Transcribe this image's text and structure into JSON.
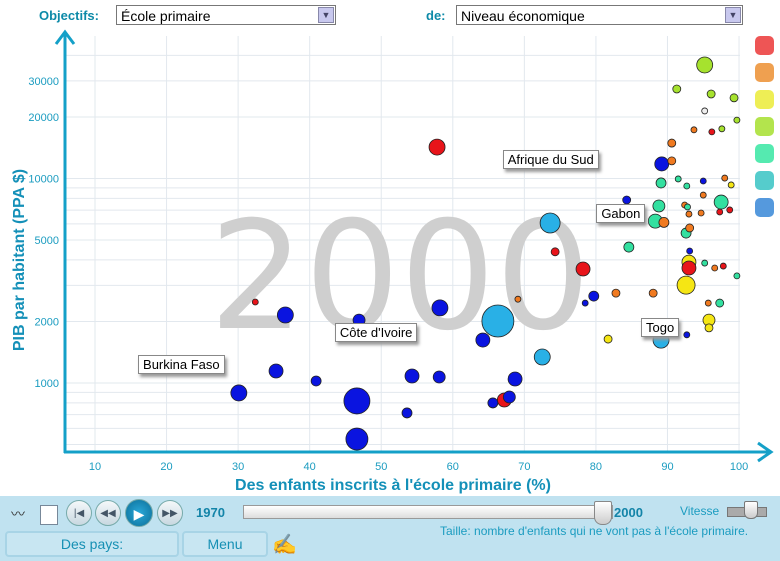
{
  "header": {
    "objectives_label": "Objectifs:",
    "objectives_value": "École primaire",
    "of_label": "de:",
    "of_value": "Niveau économique"
  },
  "chart_data": {
    "type": "scatter",
    "xlabel": "Des enfants inscrits à l'école primaire (%)",
    "ylabel": "PIB par habitant (PPA $)",
    "year": "2000",
    "xlim": [
      5.8,
      100.1
    ],
    "ylim": [
      460,
      47600
    ],
    "yscale": "log",
    "grid": true,
    "xticks": [
      10,
      20,
      30,
      40,
      50,
      60,
      70,
      80,
      90,
      100
    ],
    "yticks": [
      1000,
      2000,
      5000,
      10000,
      20000,
      30000
    ],
    "size_note": "Taille: nombre d'enfants qui ne vont pas à l'école primaire.",
    "legend_colors": [
      "#ee5555",
      "#efa050",
      "#eeee55",
      "#b3e44d",
      "#55eab0",
      "#55cccc",
      "#5599dd"
    ],
    "colors": {
      "r": "#e8141a",
      "o": "#f07a20",
      "y": "#f5e614",
      "g": "#a6e22e",
      "t": "#33e0a0",
      "c": "#29b0e6",
      "b": "#0a14e0",
      "w": "#eeeeee"
    },
    "points": [
      {
        "x": 46.6,
        "y": 817,
        "s": 13,
        "c": "b"
      },
      {
        "x": 46.6,
        "y": 532,
        "s": 11,
        "c": "b"
      },
      {
        "x": 66.3,
        "y": 2010,
        "s": 16,
        "c": "c"
      },
      {
        "x": 73.6,
        "y": 6060,
        "s": 10,
        "c": "c"
      },
      {
        "x": 72.5,
        "y": 1340,
        "s": 8,
        "c": "c"
      },
      {
        "x": 30.1,
        "y": 894,
        "s": 8,
        "c": "b"
      },
      {
        "x": 36.6,
        "y": 2150,
        "s": 8,
        "c": "b"
      },
      {
        "x": 35.3,
        "y": 1145,
        "s": 7,
        "c": "b"
      },
      {
        "x": 40.9,
        "y": 1023,
        "s": 5,
        "c": "b"
      },
      {
        "x": 54.3,
        "y": 1082,
        "s": 7,
        "c": "b"
      },
      {
        "x": 58.2,
        "y": 2330,
        "s": 8,
        "c": "b"
      },
      {
        "x": 58.1,
        "y": 1070,
        "s": 6,
        "c": "b"
      },
      {
        "x": 53.6,
        "y": 714,
        "s": 5,
        "c": "b"
      },
      {
        "x": 46.9,
        "y": 2030,
        "s": 6,
        "c": "b"
      },
      {
        "x": 64.2,
        "y": 1622,
        "s": 7,
        "c": "b"
      },
      {
        "x": 68.7,
        "y": 1046,
        "s": 7,
        "c": "b"
      },
      {
        "x": 67.2,
        "y": 826,
        "s": 7,
        "c": "r"
      },
      {
        "x": 67.9,
        "y": 854,
        "s": 6,
        "c": "b"
      },
      {
        "x": 65.6,
        "y": 799,
        "s": 5,
        "c": "b"
      },
      {
        "x": 89.2,
        "y": 11780,
        "s": 7,
        "c": "b"
      },
      {
        "x": 79.7,
        "y": 2660,
        "s": 5,
        "c": "b"
      },
      {
        "x": 78.5,
        "y": 2460,
        "s": 3,
        "c": "b"
      },
      {
        "x": 84.3,
        "y": 7850,
        "s": 4,
        "c": "b"
      },
      {
        "x": 57.8,
        "y": 14240,
        "s": 8,
        "c": "r"
      },
      {
        "x": 78.2,
        "y": 3610,
        "s": 7,
        "c": "r"
      },
      {
        "x": 74.3,
        "y": 4380,
        "s": 4,
        "c": "r"
      },
      {
        "x": 32.4,
        "y": 2490,
        "s": 3,
        "c": "r"
      },
      {
        "x": 69.1,
        "y": 2570,
        "s": 3,
        "c": "o"
      },
      {
        "x": 82.8,
        "y": 2750,
        "s": 4,
        "c": "o"
      },
      {
        "x": 92.6,
        "y": 3010,
        "s": 9,
        "c": "y"
      },
      {
        "x": 93,
        "y": 3900,
        "s": 7,
        "c": "y"
      },
      {
        "x": 93,
        "y": 3650,
        "s": 7,
        "c": "r"
      },
      {
        "x": 95.8,
        "y": 2030,
        "s": 6,
        "c": "y"
      },
      {
        "x": 95.8,
        "y": 1860,
        "s": 4,
        "c": "y"
      },
      {
        "x": 81.7,
        "y": 1640,
        "s": 4,
        "c": "y"
      },
      {
        "x": 95.2,
        "y": 35900,
        "s": 8,
        "c": "g"
      },
      {
        "x": 84.6,
        "y": 4620,
        "s": 5,
        "c": "t"
      },
      {
        "x": 88.8,
        "y": 7340,
        "s": 6,
        "c": "t"
      },
      {
        "x": 97.5,
        "y": 7670,
        "s": 7,
        "c": "t"
      },
      {
        "x": 88.3,
        "y": 6190,
        "s": 7,
        "c": "t"
      },
      {
        "x": 89.1,
        "y": 1620,
        "s": 8,
        "c": "c"
      },
      {
        "x": 89.5,
        "y": 6100,
        "s": 5,
        "c": "o"
      },
      {
        "x": 91.3,
        "y": 27400,
        "s": 4,
        "c": "g"
      },
      {
        "x": 96.1,
        "y": 25900,
        "s": 4,
        "c": "g"
      },
      {
        "x": 99.3,
        "y": 24800,
        "s": 4,
        "c": "g"
      },
      {
        "x": 95.2,
        "y": 21400,
        "s": 3,
        "c": "w"
      },
      {
        "x": 99.7,
        "y": 19300,
        "s": 3,
        "c": "g"
      },
      {
        "x": 93.7,
        "y": 17300,
        "s": 3,
        "c": "o"
      },
      {
        "x": 96.2,
        "y": 16900,
        "s": 3,
        "c": "r"
      },
      {
        "x": 97.6,
        "y": 17500,
        "s": 3,
        "c": "g"
      },
      {
        "x": 90.6,
        "y": 14900,
        "s": 4,
        "c": "o"
      },
      {
        "x": 90.6,
        "y": 12200,
        "s": 4,
        "c": "o"
      },
      {
        "x": 91.5,
        "y": 9950,
        "s": 3,
        "c": "t"
      },
      {
        "x": 89.1,
        "y": 9510,
        "s": 5,
        "c": "t"
      },
      {
        "x": 92.7,
        "y": 9190,
        "s": 3,
        "c": "t"
      },
      {
        "x": 95,
        "y": 9720,
        "s": 3,
        "c": "b"
      },
      {
        "x": 98,
        "y": 10050,
        "s": 3,
        "c": "o"
      },
      {
        "x": 98.9,
        "y": 9300,
        "s": 3,
        "c": "y"
      },
      {
        "x": 95,
        "y": 8300,
        "s": 3,
        "c": "o"
      },
      {
        "x": 92.4,
        "y": 7420,
        "s": 3,
        "c": "o"
      },
      {
        "x": 92.8,
        "y": 7260,
        "s": 3,
        "c": "t"
      },
      {
        "x": 94.7,
        "y": 6780,
        "s": 3,
        "c": "o"
      },
      {
        "x": 93,
        "y": 6700,
        "s": 3,
        "c": "o"
      },
      {
        "x": 97.3,
        "y": 6860,
        "s": 3,
        "c": "r"
      },
      {
        "x": 98.7,
        "y": 7020,
        "s": 3,
        "c": "r"
      },
      {
        "x": 93.1,
        "y": 5730,
        "s": 4,
        "c": "o"
      },
      {
        "x": 92.6,
        "y": 5410,
        "s": 5,
        "c": "t"
      },
      {
        "x": 93.1,
        "y": 4420,
        "s": 3,
        "c": "b"
      },
      {
        "x": 95.2,
        "y": 3860,
        "s": 3,
        "c": "t"
      },
      {
        "x": 96.6,
        "y": 3650,
        "s": 3,
        "c": "o"
      },
      {
        "x": 97.8,
        "y": 3730,
        "s": 3,
        "c": "r"
      },
      {
        "x": 99.7,
        "y": 3340,
        "s": 3,
        "c": "t"
      },
      {
        "x": 95.7,
        "y": 2460,
        "s": 3,
        "c": "o"
      },
      {
        "x": 97.3,
        "y": 2460,
        "s": 4,
        "c": "t"
      },
      {
        "x": 92.7,
        "y": 1720,
        "s": 3,
        "c": "b"
      },
      {
        "x": 88,
        "y": 2750,
        "s": 4,
        "c": "o"
      }
    ],
    "labels": [
      {
        "text": "Afrique du Sud",
        "x": 89.2,
        "y": 11780
      },
      {
        "text": "Gabon",
        "x": 88.3,
        "y": 6190
      },
      {
        "text": "Togo",
        "x": 89.1,
        "y": 1620
      },
      {
        "text": "Côte d'Ivoire",
        "x": 64.2,
        "y": 1622
      },
      {
        "text": "Burkina Faso",
        "x": 35.3,
        "y": 1145
      }
    ]
  },
  "controls": {
    "start_year": "1970",
    "end_year": "2000",
    "slider_value": 2000,
    "speed_label": "Vitesse",
    "countries_button": "Des pays:",
    "menu_button": "Menu"
  }
}
